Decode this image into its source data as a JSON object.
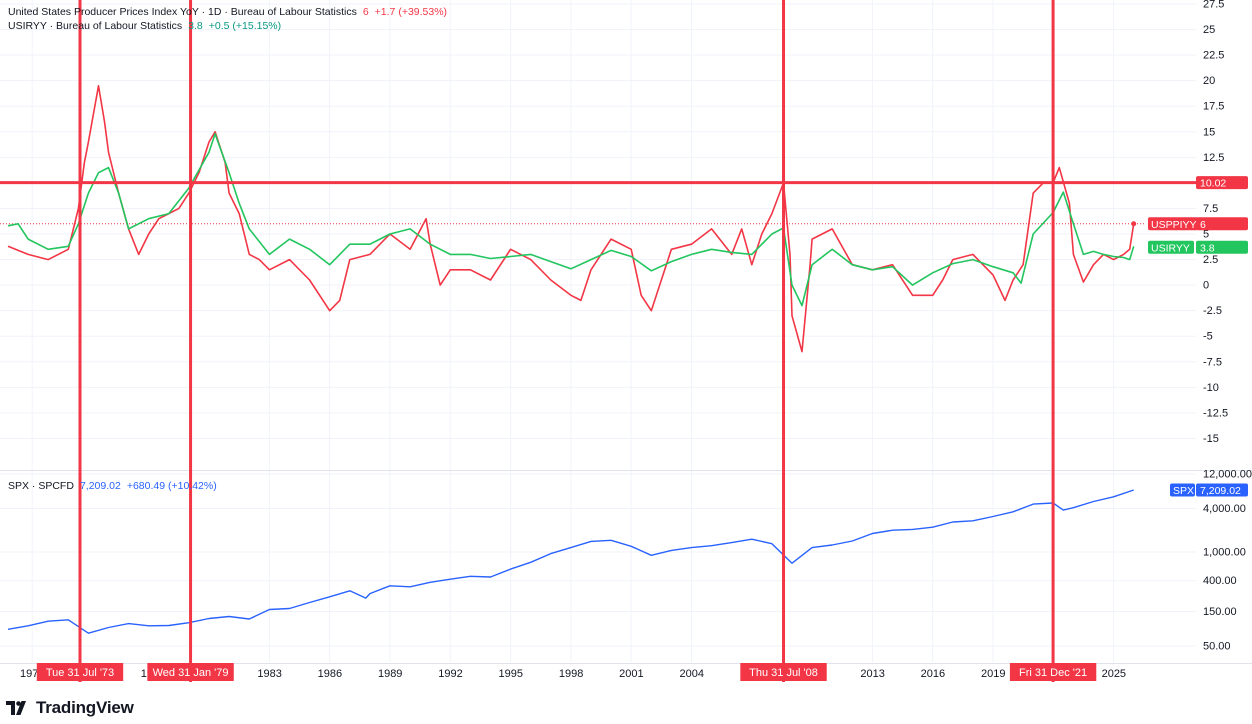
{
  "legend": {
    "ppi": {
      "title": "United States Producer Prices Index YoY · 1D · Bureau of Labour Statistics",
      "value": "6",
      "change": "+1.7 (+39.53%)"
    },
    "cpi": {
      "title": "USIRYY · Bureau of Labour Statistics",
      "value": "3.8",
      "change": "+0.5 (+15.15%)"
    },
    "spx": {
      "title": "SPX · SPCFD",
      "value": "7,209.02",
      "change": "+680.49 (+10.42%)"
    }
  },
  "brand": "TradingView",
  "colors": {
    "ppi": "#f23645",
    "cpi": "#089981",
    "cpi_line": "#22c55e",
    "spx": "#2962ff",
    "marker": "#f23645"
  },
  "chart_data": [
    {
      "type": "line",
      "panel": "top",
      "y_ticks": [
        "27.5",
        "25",
        "22.5",
        "20",
        "17.5",
        "15",
        "12.5",
        "10",
        "7.5",
        "5",
        "2.5",
        "0",
        "-2.5",
        "-5",
        "-7.5",
        "-10",
        "-12.5",
        "-15"
      ],
      "ylim": [
        -17.5,
        27.5
      ],
      "series": [
        {
          "name": "USPPIYY",
          "color": "#f23645",
          "points": [
            [
              1970,
              3.8
            ],
            [
              1971,
              3.0
            ],
            [
              1972,
              2.5
            ],
            [
              1973,
              3.5
            ],
            [
              1973.5,
              7.5
            ],
            [
              1973.8,
              12
            ],
            [
              1974,
              14
            ],
            [
              1974.5,
              19.5
            ],
            [
              1974.8,
              16
            ],
            [
              1975,
              13
            ],
            [
              1975.5,
              9
            ],
            [
              1976,
              5.5
            ],
            [
              1976.5,
              3
            ],
            [
              1977,
              5
            ],
            [
              1977.5,
              6.5
            ],
            [
              1978,
              7
            ],
            [
              1978.5,
              7.5
            ],
            [
              1979,
              9
            ],
            [
              1979.5,
              11
            ],
            [
              1980,
              14
            ],
            [
              1980.3,
              15
            ],
            [
              1980.8,
              12
            ],
            [
              1981,
              9
            ],
            [
              1981.5,
              7
            ],
            [
              1982,
              3
            ],
            [
              1982.5,
              2.5
            ],
            [
              1983,
              1.5
            ],
            [
              1984,
              2.5
            ],
            [
              1985,
              0.5
            ],
            [
              1986,
              -2.5
            ],
            [
              1986.5,
              -1.5
            ],
            [
              1987,
              2.5
            ],
            [
              1988,
              3
            ],
            [
              1989,
              5
            ],
            [
              1990,
              3.5
            ],
            [
              1990.8,
              6.5
            ],
            [
              1991,
              4
            ],
            [
              1991.5,
              0
            ],
            [
              1992,
              1.5
            ],
            [
              1993,
              1.5
            ],
            [
              1994,
              0.5
            ],
            [
              1995,
              3.5
            ],
            [
              1996,
              2.5
            ],
            [
              1997,
              0.5
            ],
            [
              1998,
              -1
            ],
            [
              1998.5,
              -1.5
            ],
            [
              1999,
              1.5
            ],
            [
              2000,
              4.5
            ],
            [
              2001,
              3.5
            ],
            [
              2001.5,
              -1
            ],
            [
              2002,
              -2.5
            ],
            [
              2003,
              3.5
            ],
            [
              2004,
              4
            ],
            [
              2005,
              5.5
            ],
            [
              2006,
              3
            ],
            [
              2006.5,
              5.5
            ],
            [
              2007,
              2
            ],
            [
              2007.5,
              5
            ],
            [
              2008,
              7
            ],
            [
              2008.58,
              10
            ],
            [
              2008.9,
              3
            ],
            [
              2009,
              -3
            ],
            [
              2009.5,
              -6.5
            ],
            [
              2009.9,
              2
            ],
            [
              2010,
              4.5
            ],
            [
              2011,
              5.5
            ],
            [
              2012,
              2
            ],
            [
              2013,
              1.5
            ],
            [
              2014,
              2
            ],
            [
              2015,
              -1
            ],
            [
              2016,
              -1
            ],
            [
              2016.5,
              0.5
            ],
            [
              2017,
              2.5
            ],
            [
              2018,
              3
            ],
            [
              2019,
              1
            ],
            [
              2019.6,
              -1.5
            ],
            [
              2020,
              0.5
            ],
            [
              2020.5,
              2
            ],
            [
              2021,
              9
            ],
            [
              2021.5,
              10
            ],
            [
              2021.99,
              10.02
            ],
            [
              2022.3,
              11.5
            ],
            [
              2022.8,
              8
            ],
            [
              2023,
              3
            ],
            [
              2023.5,
              0.3
            ],
            [
              2024,
              2
            ],
            [
              2024.5,
              3
            ],
            [
              2025,
              2.5
            ],
            [
              2025.5,
              3
            ],
            [
              2025.8,
              3.5
            ],
            [
              2026.0,
              6
            ]
          ]
        },
        {
          "name": "USIRYY",
          "color": "#22c55e",
          "points": [
            [
              1970,
              5.8
            ],
            [
              1970.5,
              6
            ],
            [
              1971,
              4.5
            ],
            [
              1972,
              3.5
            ],
            [
              1973,
              3.8
            ],
            [
              1973.5,
              6
            ],
            [
              1974,
              9
            ],
            [
              1974.5,
              11
            ],
            [
              1975,
              11.5
            ],
            [
              1975.5,
              9
            ],
            [
              1976,
              5.5
            ],
            [
              1977,
              6.5
            ],
            [
              1978,
              7
            ],
            [
              1979,
              9.5
            ],
            [
              1980,
              13
            ],
            [
              1980.3,
              14.8
            ],
            [
              1981,
              11
            ],
            [
              1981.5,
              8
            ],
            [
              1982,
              5.5
            ],
            [
              1983,
              3
            ],
            [
              1984,
              4.5
            ],
            [
              1985,
              3.5
            ],
            [
              1986,
              2
            ],
            [
              1987,
              4
            ],
            [
              1988,
              4
            ],
            [
              1989,
              5
            ],
            [
              1990,
              5.5
            ],
            [
              1991,
              4
            ],
            [
              1992,
              3
            ],
            [
              1993,
              3
            ],
            [
              1994,
              2.6
            ],
            [
              1995,
              2.8
            ],
            [
              1996,
              3
            ],
            [
              1997,
              2.3
            ],
            [
              1998,
              1.6
            ],
            [
              1999,
              2.5
            ],
            [
              2000,
              3.4
            ],
            [
              2001,
              2.8
            ],
            [
              2002,
              1.4
            ],
            [
              2003,
              2.3
            ],
            [
              2004,
              3
            ],
            [
              2005,
              3.5
            ],
            [
              2006,
              3.2
            ],
            [
              2007,
              3
            ],
            [
              2008,
              5
            ],
            [
              2008.58,
              5.6
            ],
            [
              2009,
              0
            ],
            [
              2009.5,
              -2
            ],
            [
              2010,
              2
            ],
            [
              2011,
              3.5
            ],
            [
              2012,
              2
            ],
            [
              2013,
              1.5
            ],
            [
              2014,
              1.8
            ],
            [
              2015,
              0
            ],
            [
              2016,
              1.2
            ],
            [
              2017,
              2.1
            ],
            [
              2018,
              2.5
            ],
            [
              2019,
              1.8
            ],
            [
              2020,
              1.2
            ],
            [
              2020.4,
              0.2
            ],
            [
              2021,
              5
            ],
            [
              2021.99,
              7.1
            ],
            [
              2022.5,
              9.1
            ],
            [
              2023,
              6
            ],
            [
              2023.5,
              3
            ],
            [
              2024,
              3.3
            ],
            [
              2024.5,
              3
            ],
            [
              2025,
              2.8
            ],
            [
              2025.5,
              2.7
            ],
            [
              2025.8,
              2.5
            ],
            [
              2026.0,
              3.8
            ]
          ]
        }
      ],
      "hline": {
        "value": 10.02,
        "label": "10.02"
      },
      "last_labels": [
        {
          "name": "USPPIYY",
          "value": "6"
        },
        {
          "name": "USIRYY",
          "value": "3.8"
        }
      ]
    },
    {
      "type": "line",
      "panel": "bottom",
      "y_ticks": [
        "12,000.00",
        "4,000.00",
        "1,000.00",
        "400.00",
        "150.00",
        "50.00"
      ],
      "tick_values": [
        12000,
        4000,
        1000,
        400,
        150,
        50
      ],
      "log_scale": true,
      "ylim": [
        30,
        12000
      ],
      "series": [
        {
          "name": "SPX",
          "color": "#2962ff",
          "points": [
            [
              1970,
              85
            ],
            [
              1971,
              95
            ],
            [
              1972,
              110
            ],
            [
              1973,
              115
            ],
            [
              1974,
              75
            ],
            [
              1975,
              90
            ],
            [
              1976,
              102
            ],
            [
              1977,
              95
            ],
            [
              1978,
              96
            ],
            [
              1979,
              105
            ],
            [
              1980,
              120
            ],
            [
              1981,
              128
            ],
            [
              1982,
              118
            ],
            [
              1983,
              160
            ],
            [
              1984,
              165
            ],
            [
              1985,
              200
            ],
            [
              1986,
              240
            ],
            [
              1987,
              290
            ],
            [
              1987.8,
              230
            ],
            [
              1988,
              265
            ],
            [
              1989,
              340
            ],
            [
              1990,
              330
            ],
            [
              1991,
              380
            ],
            [
              1992,
              420
            ],
            [
              1993,
              460
            ],
            [
              1994,
              450
            ],
            [
              1995,
              580
            ],
            [
              1996,
              720
            ],
            [
              1997,
              950
            ],
            [
              1998,
              1150
            ],
            [
              1999,
              1400
            ],
            [
              2000,
              1450
            ],
            [
              2001,
              1200
            ],
            [
              2002,
              900
            ],
            [
              2003,
              1050
            ],
            [
              2004,
              1150
            ],
            [
              2005,
              1220
            ],
            [
              2006,
              1350
            ],
            [
              2007,
              1500
            ],
            [
              2008,
              1300
            ],
            [
              2009,
              700
            ],
            [
              2010,
              1150
            ],
            [
              2011,
              1250
            ],
            [
              2012,
              1420
            ],
            [
              2013,
              1800
            ],
            [
              2014,
              2000
            ],
            [
              2015,
              2050
            ],
            [
              2016,
              2200
            ],
            [
              2017,
              2600
            ],
            [
              2018,
              2700
            ],
            [
              2019,
              3100
            ],
            [
              2020,
              3600
            ],
            [
              2021,
              4600
            ],
            [
              2021.99,
              4766
            ],
            [
              2022.5,
              3800
            ],
            [
              2023,
              4100
            ],
            [
              2024,
              5000
            ],
            [
              2025,
              5800
            ],
            [
              2026.0,
              7209.02
            ]
          ]
        }
      ],
      "last_labels": [
        {
          "name": "SPX",
          "value": "7,209.02"
        }
      ]
    }
  ],
  "x_axis": {
    "ticks": [
      {
        "label": "197",
        "year": 1971.2
      },
      {
        "label": "1983",
        "year": 1983
      },
      {
        "label": "1986",
        "year": 1986
      },
      {
        "label": "1989",
        "year": 1989
      },
      {
        "label": "1992",
        "year": 1992
      },
      {
        "label": "1995",
        "year": 1995
      },
      {
        "label": "1998",
        "year": 1998
      },
      {
        "label": "2001",
        "year": 2001
      },
      {
        "label": "2004",
        "year": 2004
      },
      {
        "label": "2013",
        "year": 2013
      },
      {
        "label": "2016",
        "year": 2016
      },
      {
        "label": "2019",
        "year": 2019
      },
      {
        "label": "2025",
        "year": 2025
      }
    ],
    "cover_ticks": [
      {
        "label": "19",
        "year": 1977.2
      },
      {
        "label": "2",
        "year": 2007.5
      }
    ],
    "markers": [
      {
        "label": "Tue 31 Jul '73",
        "year": 1973.58
      },
      {
        "label": "Wed 31 Jan '79",
        "year": 1979.08
      },
      {
        "label": "Thu 31 Jul '08",
        "year": 2008.58
      },
      {
        "label": "Fri 31 Dec '21",
        "year": 2021.99
      }
    ]
  }
}
